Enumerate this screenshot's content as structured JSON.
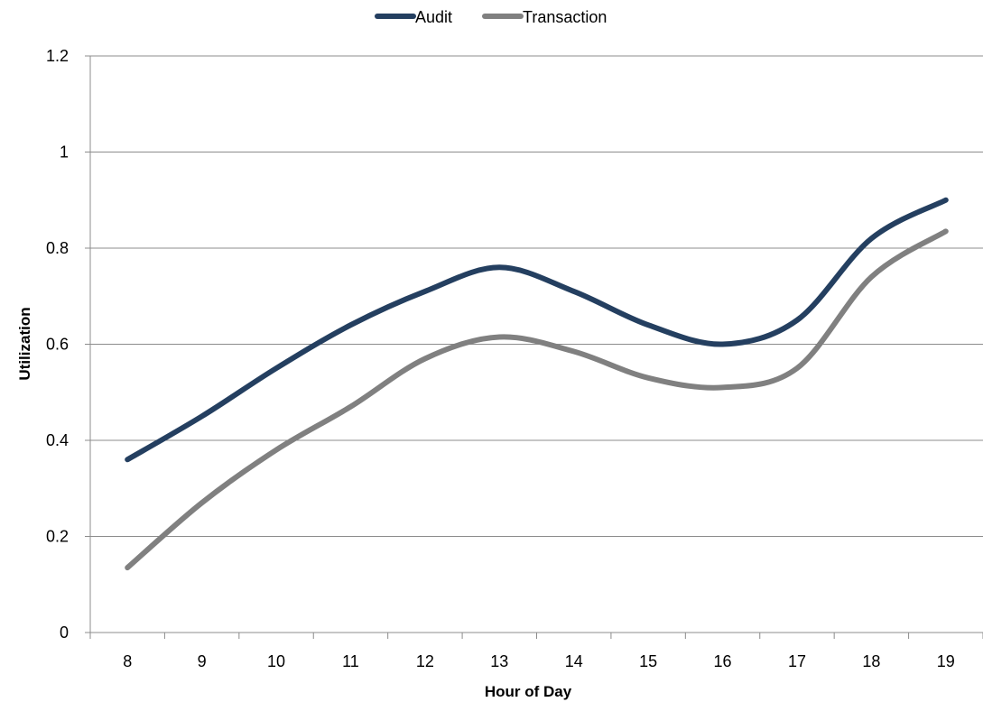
{
  "chart_data": {
    "type": "line",
    "title": "",
    "xlabel": "Hour of Day",
    "ylabel": "Utilization",
    "x": [
      8,
      9,
      10,
      11,
      12,
      13,
      14,
      15,
      16,
      17,
      18,
      19
    ],
    "ylim": [
      0,
      1.2
    ],
    "yticks": [
      "0",
      "0.2",
      "0.4",
      "0.6",
      "0.8",
      "1",
      "1.2"
    ],
    "grid": true,
    "legend_position": "top",
    "smooth": true,
    "series": [
      {
        "name": "Audit",
        "color": "#243F60",
        "values": [
          0.36,
          0.45,
          0.55,
          0.64,
          0.71,
          0.76,
          0.71,
          0.64,
          0.6,
          0.65,
          0.82,
          0.9
        ]
      },
      {
        "name": "Transaction",
        "color": "#808080",
        "values": [
          0.135,
          0.27,
          0.38,
          0.47,
          0.57,
          0.615,
          0.585,
          0.53,
          0.51,
          0.55,
          0.74,
          0.835
        ]
      }
    ]
  }
}
